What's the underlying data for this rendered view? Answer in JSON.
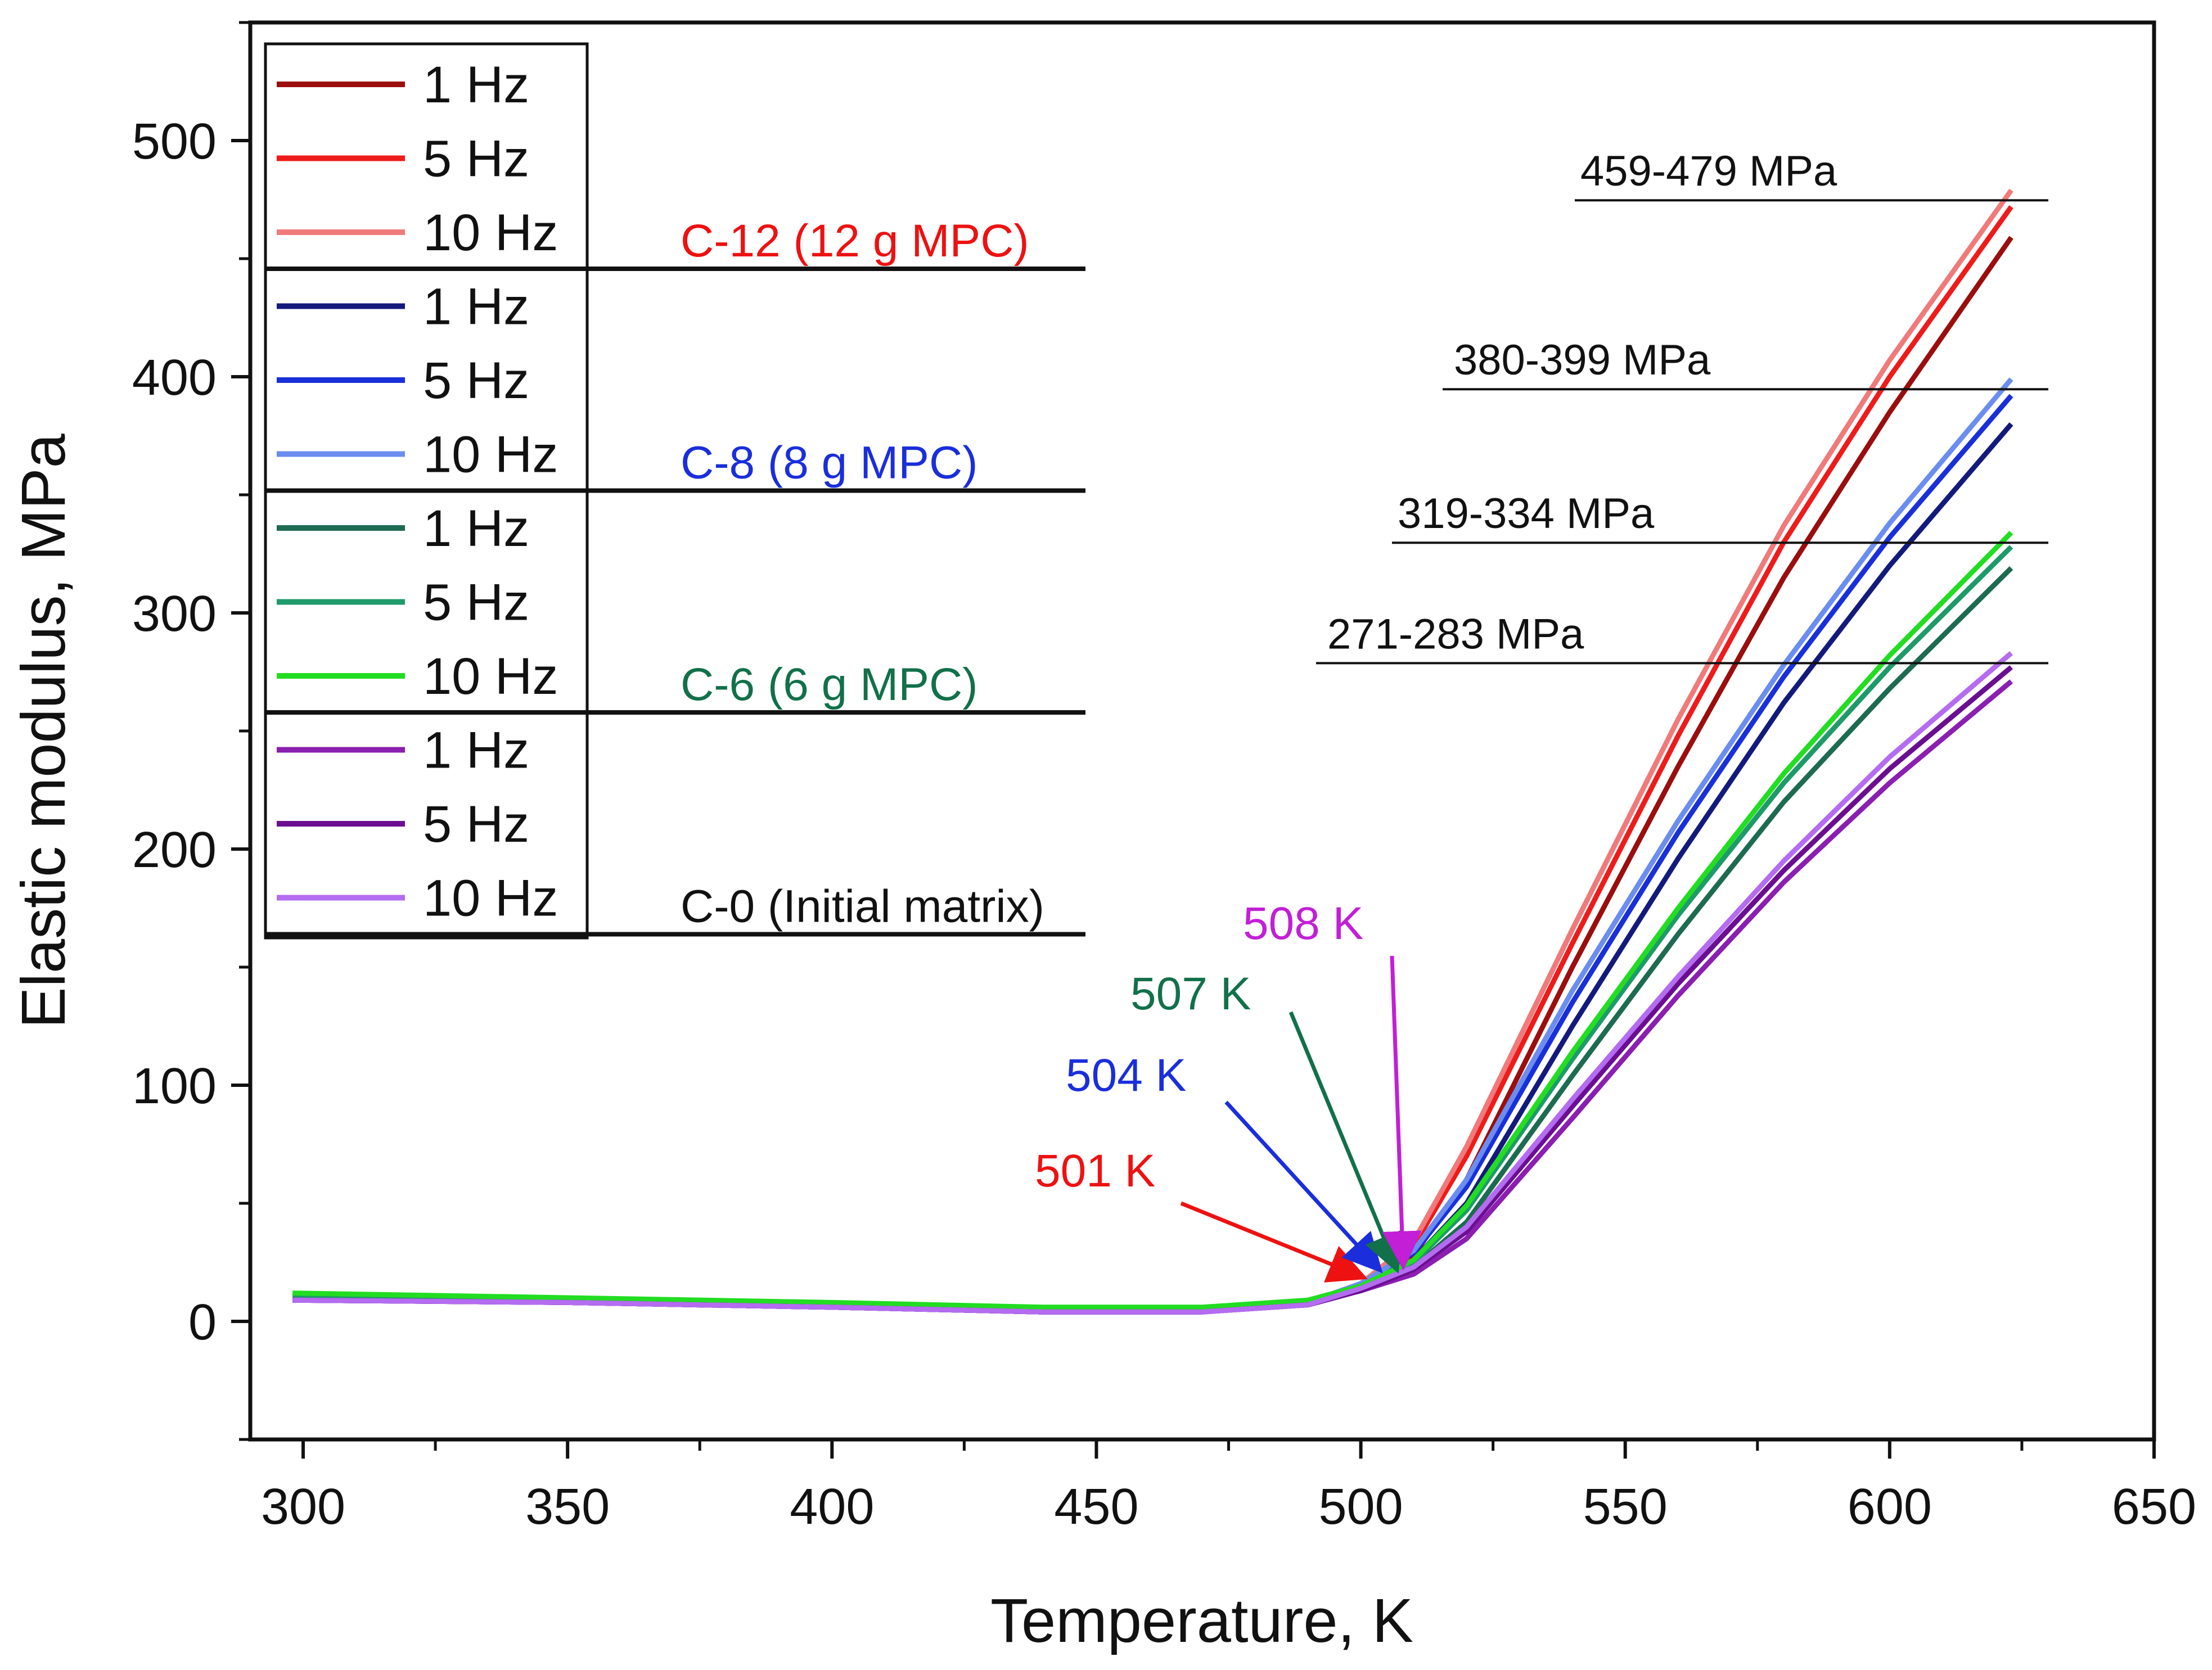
{
  "chart_data": {
    "type": "line",
    "xlabel": "Temperature, K",
    "ylabel": "Elastic modulus, MPa",
    "xlim": [
      290,
      650
    ],
    "ylim": [
      -50,
      550
    ],
    "x_ticks": [
      300,
      350,
      400,
      450,
      500,
      550,
      600,
      650
    ],
    "y_ticks": [
      0,
      100,
      200,
      300,
      400,
      500
    ],
    "x_tick_labels": [
      "300",
      "350",
      "400",
      "450",
      "500",
      "550",
      "600",
      "650"
    ],
    "y_tick_labels": [
      "0",
      "100",
      "200",
      "300",
      "400",
      "500"
    ],
    "legend_position": "top-left",
    "groups": [
      {
        "name": "C-12 (12 g MPC)",
        "label_color": "#ee1111",
        "onset_label": "501 K",
        "onset_x": 501,
        "onset_y": 18,
        "range_label": "459-479 MPa",
        "series": [
          {
            "name": "1 Hz",
            "color": "#9b0e0e",
            "x": [
              298,
              350,
              400,
              440,
              470,
              490,
              500,
              510,
              520,
              540,
              560,
              580,
              600,
              623
            ],
            "y": [
              10,
              8,
              6,
              4,
              4,
              8,
              15,
              28,
              60,
              150,
              235,
              315,
              385,
              459
            ]
          },
          {
            "name": "5 Hz",
            "color": "#ee1b1b",
            "x": [
              298,
              350,
              400,
              440,
              470,
              490,
              500,
              510,
              520,
              540,
              560,
              580,
              600,
              623
            ],
            "y": [
              10,
              8,
              6,
              4,
              4,
              8,
              16,
              32,
              70,
              160,
              248,
              330,
              400,
              472
            ]
          },
          {
            "name": "10 Hz",
            "color": "#f07a7a",
            "x": [
              298,
              350,
              400,
              440,
              470,
              490,
              500,
              510,
              520,
              540,
              560,
              580,
              600,
              623
            ],
            "y": [
              10,
              8,
              6,
              4,
              4,
              8,
              16,
              34,
              74,
              166,
              255,
              337,
              407,
              479
            ]
          }
        ]
      },
      {
        "name": "C-8 (8 g MPC)",
        "label_color": "#1a2edc",
        "onset_label": "504 K",
        "onset_x": 504,
        "onset_y": 20,
        "range_label": "380-399 MPa",
        "series": [
          {
            "name": "1 Hz",
            "color": "#141a7c",
            "x": [
              298,
              350,
              400,
              440,
              470,
              490,
              500,
              510,
              520,
              540,
              560,
              580,
              600,
              623
            ],
            "y": [
              9,
              8,
              6,
              4,
              4,
              8,
              15,
              26,
              50,
              125,
              196,
              262,
              320,
              380
            ]
          },
          {
            "name": "5 Hz",
            "color": "#1930d8",
            "x": [
              298,
              350,
              400,
              440,
              470,
              490,
              500,
              510,
              520,
              540,
              560,
              580,
              600,
              623
            ],
            "y": [
              9,
              8,
              6,
              4,
              4,
              8,
              16,
              29,
              57,
              135,
              207,
              273,
              332,
              392
            ]
          },
          {
            "name": "10 Hz",
            "color": "#6b8df0",
            "x": [
              298,
              350,
              400,
              440,
              470,
              490,
              500,
              510,
              520,
              540,
              560,
              580,
              600,
              623
            ],
            "y": [
              9,
              8,
              6,
              4,
              4,
              8,
              16,
              30,
              60,
              140,
              212,
              278,
              338,
              399
            ]
          }
        ]
      },
      {
        "name": "C-6 (6 g MPC)",
        "label_color": "#12704a",
        "onset_label": "507 K",
        "onset_x": 507,
        "onset_y": 20,
        "range_label": "319-334 MPa",
        "series": [
          {
            "name": "1 Hz",
            "color": "#1d6b50",
            "x": [
              298,
              350,
              400,
              440,
              470,
              490,
              500,
              510,
              520,
              540,
              560,
              580,
              600,
              623
            ],
            "y": [
              11,
              9,
              7,
              5,
              5,
              8,
              14,
              23,
              42,
              104,
              164,
              220,
              268,
              319
            ]
          },
          {
            "name": "5 Hz",
            "color": "#1f9a6a",
            "x": [
              298,
              350,
              400,
              440,
              470,
              490,
              500,
              510,
              520,
              540,
              560,
              580,
              600,
              623
            ],
            "y": [
              11,
              9,
              7,
              5,
              5,
              8,
              15,
              25,
              47,
              111,
              172,
              228,
              277,
              328
            ]
          },
          {
            "name": "10 Hz",
            "color": "#22dd22",
            "x": [
              298,
              350,
              400,
              440,
              470,
              490,
              500,
              510,
              520,
              540,
              560,
              580,
              600,
              623
            ],
            "y": [
              12,
              10,
              8,
              6,
              6,
              9,
              15,
              26,
              49,
              114,
              175,
              232,
              282,
              334
            ]
          }
        ]
      },
      {
        "name": "C-0 (Initial matrix)",
        "label_color": "#111111",
        "onset_label": "508 K",
        "onset_label_color": "#c21fd6",
        "onset_x": 508,
        "onset_y": 22,
        "range_label": "271-283 MPa",
        "series": [
          {
            "name": "1 Hz",
            "color": "#8a1fb0",
            "x": [
              298,
              350,
              400,
              440,
              470,
              490,
              500,
              510,
              520,
              540,
              560,
              580,
              600,
              623
            ],
            "y": [
              9,
              8,
              6,
              4,
              4,
              7,
              13,
              20,
              35,
              86,
              138,
              186,
              228,
              271
            ]
          },
          {
            "name": "5 Hz",
            "color": "#6a0f90",
            "x": [
              298,
              350,
              400,
              440,
              470,
              490,
              500,
              510,
              520,
              540,
              560,
              580,
              600,
              623
            ],
            "y": [
              9,
              8,
              6,
              4,
              4,
              7,
              13,
              22,
              38,
              91,
              143,
              191,
              234,
              277
            ]
          },
          {
            "name": "10 Hz",
            "color": "#b46cf0",
            "x": [
              298,
              350,
              400,
              440,
              470,
              490,
              500,
              510,
              520,
              540,
              560,
              580,
              600,
              623
            ],
            "y": [
              9,
              8,
              6,
              4,
              4,
              7,
              14,
              23,
              40,
              94,
              146,
              195,
              239,
              283
            ]
          }
        ]
      }
    ]
  }
}
